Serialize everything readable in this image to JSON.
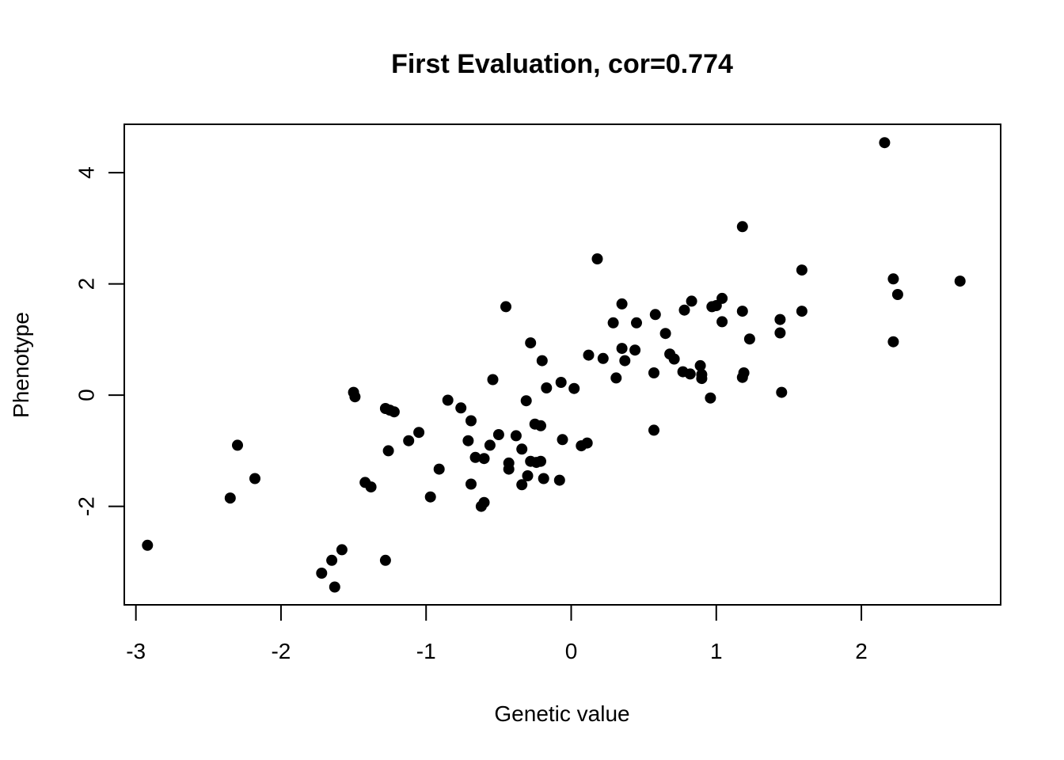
{
  "chart_data": {
    "type": "scatter",
    "title": "First Evaluation, cor=0.774",
    "xlabel": "Genetic value",
    "ylabel": "Phenotype",
    "xlim": [
      -3.08,
      2.96
    ],
    "ylim": [
      -3.77,
      4.87
    ],
    "x_ticks": [
      -3,
      -2,
      -1,
      0,
      1,
      2
    ],
    "x_tick_labels": [
      "-3",
      "-2",
      "-1",
      "0",
      "1",
      "2"
    ],
    "y_ticks": [
      -2,
      0,
      2,
      4
    ],
    "y_tick_labels": [
      "-2",
      "0",
      "2",
      "4"
    ],
    "grid": false,
    "legend": "none",
    "point_color": "#000000",
    "points": [
      [
        -2.92,
        -2.7
      ],
      [
        -2.3,
        -0.9
      ],
      [
        -2.35,
        -1.85
      ],
      [
        -2.18,
        -1.5
      ],
      [
        -1.72,
        -3.2
      ],
      [
        -1.65,
        -2.97
      ],
      [
        -1.63,
        -3.45
      ],
      [
        -1.58,
        -2.78
      ],
      [
        -1.5,
        0.05
      ],
      [
        -1.49,
        -0.03
      ],
      [
        -1.42,
        -1.57
      ],
      [
        -1.38,
        -1.65
      ],
      [
        -1.28,
        -0.24
      ],
      [
        -1.25,
        -0.27
      ],
      [
        -1.22,
        -0.3
      ],
      [
        -1.26,
        -1.0
      ],
      [
        -1.28,
        -2.97
      ],
      [
        -1.12,
        -0.82
      ],
      [
        -1.05,
        -0.67
      ],
      [
        -0.97,
        -1.83
      ],
      [
        -0.91,
        -1.33
      ],
      [
        -0.85,
        -0.09
      ],
      [
        -0.76,
        -0.23
      ],
      [
        -0.71,
        -0.82
      ],
      [
        -0.69,
        -0.46
      ],
      [
        -0.66,
        -1.12
      ],
      [
        -0.69,
        -1.6
      ],
      [
        -0.62,
        -2.0
      ],
      [
        -0.6,
        -1.93
      ],
      [
        -0.6,
        -1.14
      ],
      [
        -0.56,
        -0.9
      ],
      [
        -0.54,
        0.28
      ],
      [
        -0.5,
        -0.71
      ],
      [
        -0.45,
        1.59
      ],
      [
        -0.43,
        -1.22
      ],
      [
        -0.43,
        -1.33
      ],
      [
        -0.38,
        -0.73
      ],
      [
        -0.34,
        -0.97
      ],
      [
        -0.34,
        -1.61
      ],
      [
        -0.31,
        -0.1
      ],
      [
        -0.3,
        -1.45
      ],
      [
        -0.28,
        0.94
      ],
      [
        -0.28,
        -1.19
      ],
      [
        -0.24,
        -1.21
      ],
      [
        -0.21,
        -1.19
      ],
      [
        -0.25,
        -0.52
      ],
      [
        -0.21,
        -0.55
      ],
      [
        -0.2,
        0.62
      ],
      [
        -0.19,
        -1.5
      ],
      [
        -0.17,
        0.13
      ],
      [
        -0.08,
        -1.53
      ],
      [
        -0.07,
        0.23
      ],
      [
        -0.06,
        -0.8
      ],
      [
        0.02,
        0.12
      ],
      [
        0.07,
        -0.91
      ],
      [
        0.11,
        -0.86
      ],
      [
        0.12,
        0.72
      ],
      [
        0.18,
        2.45
      ],
      [
        0.22,
        0.66
      ],
      [
        0.29,
        1.3
      ],
      [
        0.31,
        0.31
      ],
      [
        0.35,
        1.64
      ],
      [
        0.35,
        0.84
      ],
      [
        0.37,
        0.62
      ],
      [
        0.44,
        0.81
      ],
      [
        0.45,
        1.3
      ],
      [
        0.57,
        -0.63
      ],
      [
        0.57,
        0.4
      ],
      [
        0.58,
        1.45
      ],
      [
        0.65,
        1.11
      ],
      [
        0.68,
        0.74
      ],
      [
        0.71,
        0.65
      ],
      [
        0.77,
        0.42
      ],
      [
        0.78,
        1.53
      ],
      [
        0.82,
        0.38
      ],
      [
        0.83,
        1.69
      ],
      [
        0.89,
        0.53
      ],
      [
        0.9,
        0.37
      ],
      [
        0.9,
        0.3
      ],
      [
        0.96,
        -0.05
      ],
      [
        0.97,
        1.59
      ],
      [
        1.0,
        1.61
      ],
      [
        1.04,
        1.74
      ],
      [
        1.04,
        1.32
      ],
      [
        1.18,
        3.03
      ],
      [
        1.18,
        1.51
      ],
      [
        1.18,
        0.32
      ],
      [
        1.19,
        0.4
      ],
      [
        1.23,
        1.01
      ],
      [
        1.44,
        1.36
      ],
      [
        1.44,
        1.12
      ],
      [
        1.45,
        0.05
      ],
      [
        1.59,
        2.25
      ],
      [
        1.59,
        1.51
      ],
      [
        2.16,
        4.54
      ],
      [
        2.22,
        2.09
      ],
      [
        2.22,
        0.96
      ],
      [
        2.25,
        1.81
      ],
      [
        2.68,
        2.05
      ]
    ]
  }
}
